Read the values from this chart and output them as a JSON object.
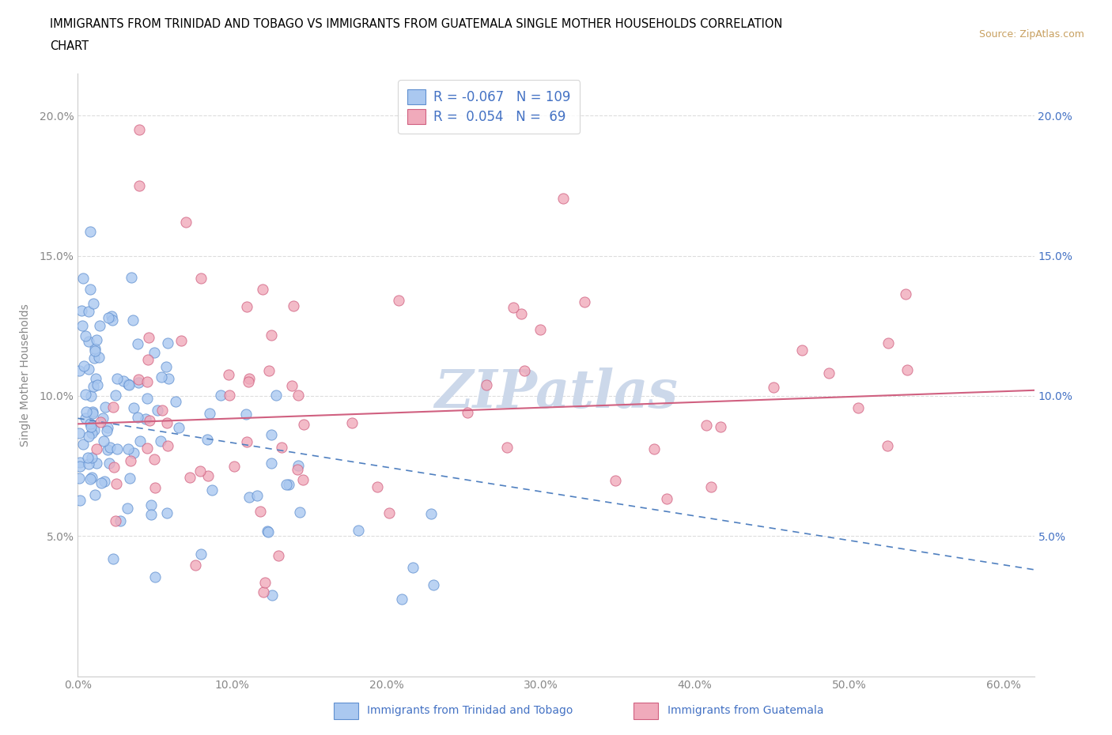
{
  "title_line1": "IMMIGRANTS FROM TRINIDAD AND TOBAGO VS IMMIGRANTS FROM GUATEMALA SINGLE MOTHER HOUSEHOLDS CORRELATION",
  "title_line2": "CHART",
  "source": "Source: ZipAtlas.com",
  "ylabel": "Single Mother Households",
  "xlim": [
    0.0,
    0.62
  ],
  "ylim": [
    0.0,
    0.215
  ],
  "xticks": [
    0.0,
    0.1,
    0.2,
    0.3,
    0.4,
    0.5,
    0.6
  ],
  "xticklabels": [
    "0.0%",
    "10.0%",
    "20.0%",
    "30.0%",
    "40.0%",
    "50.0%",
    "60.0%"
  ],
  "yticks": [
    0.05,
    0.1,
    0.15,
    0.2
  ],
  "yticklabels": [
    "5.0%",
    "10.0%",
    "15.0%",
    "20.0%"
  ],
  "legend_R": [
    -0.067,
    0.054
  ],
  "legend_N": [
    109,
    69
  ],
  "legend_labels": [
    "Immigrants from Trinidad and Tobago",
    "Immigrants from Guatemala"
  ],
  "series1_color": "#aac8f0",
  "series2_color": "#f0aabb",
  "series1_edge": "#6090d0",
  "series2_edge": "#d06080",
  "trendline1_color": "#5080c0",
  "trendline2_color": "#d06080",
  "watermark": "ZIPatlas",
  "watermark_color": "#ccd8ea",
  "background_color": "#ffffff",
  "right_axis_color": "#4472c4",
  "source_color": "#c8a060",
  "title_color": "#000000",
  "grid_color": "#dddddd",
  "tick_color": "#888888"
}
